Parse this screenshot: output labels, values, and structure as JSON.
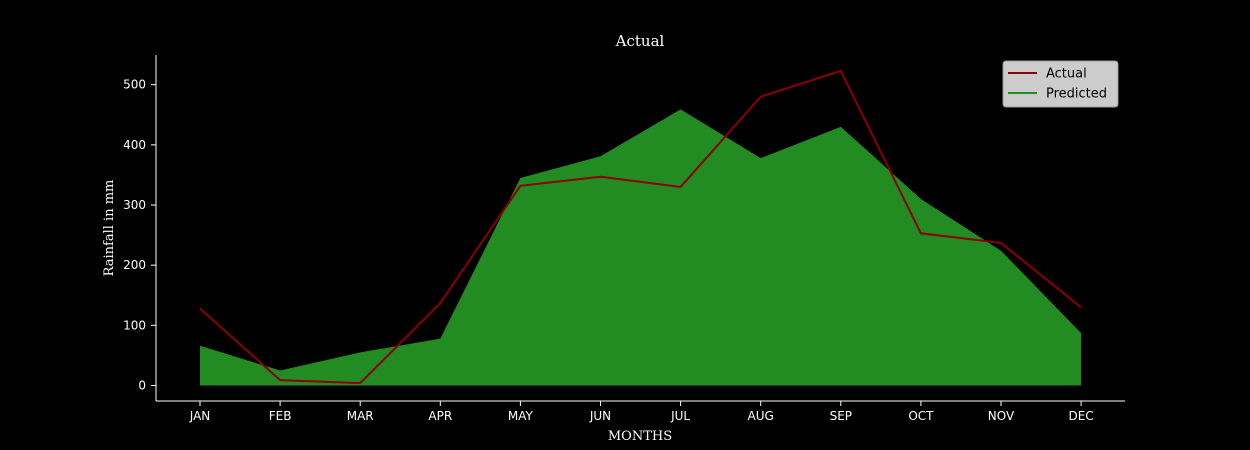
{
  "chart_data": {
    "type": "area",
    "title": "Actual",
    "xlabel": "MONTHS",
    "ylabel": "Rainfall in mm",
    "categories": [
      "JAN",
      "FEB",
      "MAR",
      "APR",
      "MAY",
      "JUN",
      "JUL",
      "AUG",
      "SEP",
      "OCT",
      "NOV",
      "DEC"
    ],
    "yticks": [
      0,
      100,
      200,
      300,
      400,
      500
    ],
    "ylim": [
      -25,
      550
    ],
    "grid": false,
    "legend_position": "top-right",
    "series": [
      {
        "name": "Actual",
        "kind": "line",
        "color": "#8b0000",
        "values": [
          128,
          9,
          4,
          137,
          332,
          347,
          330,
          480,
          523,
          253,
          237,
          130
        ]
      },
      {
        "name": "Predicted",
        "kind": "area",
        "color": "#228b22",
        "values": [
          66,
          25,
          55,
          78,
          345,
          381,
          459,
          378,
          430,
          310,
          224,
          87
        ]
      }
    ]
  }
}
